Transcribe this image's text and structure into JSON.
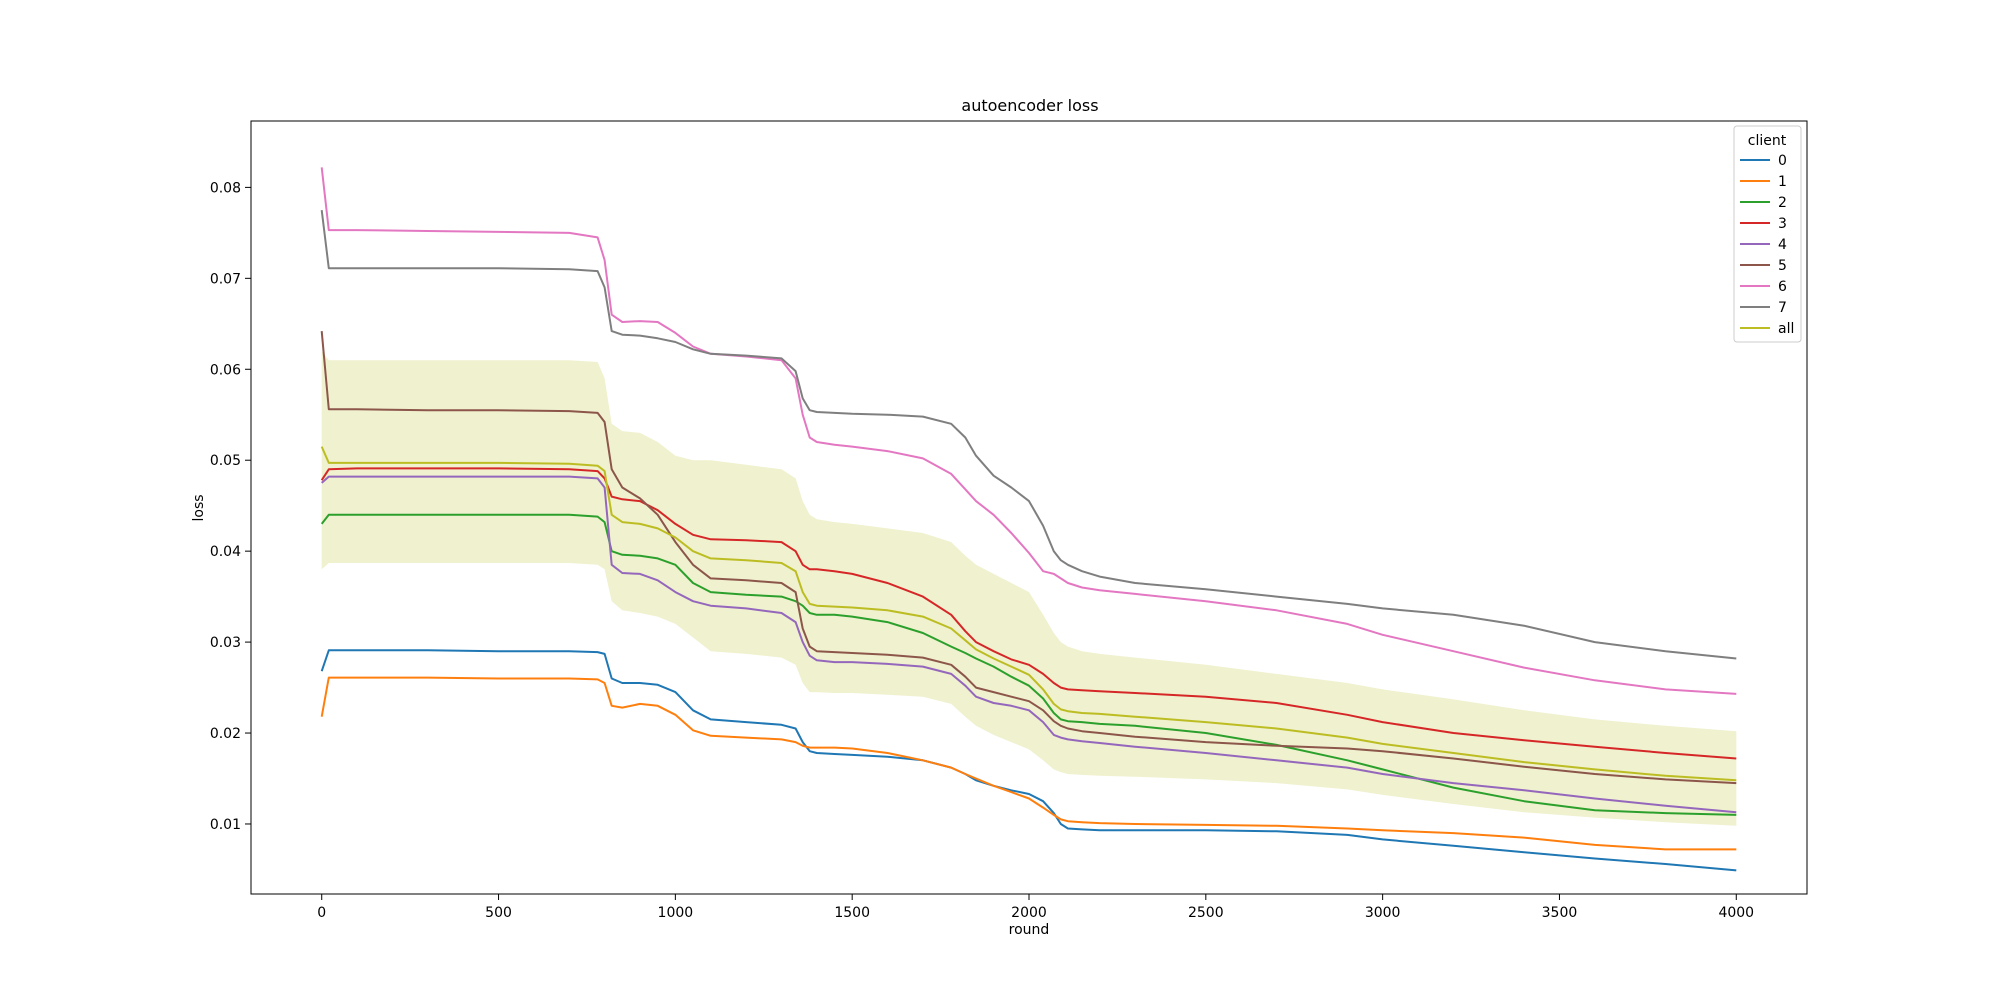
{
  "chart_data": {
    "type": "line",
    "title": "autoencoder loss",
    "xlabel": "round",
    "ylabel": "loss",
    "xlim": [
      -200,
      4200
    ],
    "ylim": [
      0.0023,
      0.0873
    ],
    "xticks": [
      0,
      500,
      1000,
      1500,
      2000,
      2500,
      3000,
      3500,
      4000
    ],
    "yticks": [
      0.01,
      0.02,
      0.03,
      0.04,
      0.05,
      0.06,
      0.07,
      0.08
    ],
    "ytick_labels": [
      "0.01",
      "0.02",
      "0.03",
      "0.04",
      "0.05",
      "0.06",
      "0.07",
      "0.08"
    ],
    "grid": false,
    "legend": {
      "title": "client",
      "position": "top-right"
    },
    "x": [
      0,
      20,
      100,
      300,
      500,
      700,
      780,
      800,
      820,
      850,
      900,
      950,
      1000,
      1050,
      1100,
      1200,
      1300,
      1340,
      1360,
      1380,
      1400,
      1450,
      1500,
      1600,
      1700,
      1780,
      1820,
      1850,
      1900,
      1950,
      2000,
      2040,
      2070,
      2090,
      2110,
      2150,
      2200,
      2300,
      2500,
      2700,
      2900,
      3000,
      3200,
      3400,
      3600,
      3800,
      4000
    ],
    "series": [
      {
        "name": "0",
        "color": "#1f77b4",
        "values": [
          0.0268,
          0.0291,
          0.0291,
          0.0291,
          0.029,
          0.029,
          0.0289,
          0.0287,
          0.026,
          0.0255,
          0.0255,
          0.0253,
          0.0245,
          0.0225,
          0.0215,
          0.0212,
          0.0209,
          0.0205,
          0.019,
          0.018,
          0.0178,
          0.0177,
          0.0176,
          0.0174,
          0.017,
          0.0162,
          0.0155,
          0.0148,
          0.0142,
          0.0137,
          0.0133,
          0.0125,
          0.0112,
          0.01,
          0.0095,
          0.0094,
          0.0093,
          0.0093,
          0.0093,
          0.0092,
          0.0088,
          0.0083,
          0.0076,
          0.0069,
          0.0062,
          0.0056,
          0.0049
        ]
      },
      {
        "name": "1",
        "color": "#ff7f0e",
        "values": [
          0.0218,
          0.0261,
          0.0261,
          0.0261,
          0.026,
          0.026,
          0.0259,
          0.0255,
          0.023,
          0.0228,
          0.0232,
          0.023,
          0.022,
          0.0203,
          0.0197,
          0.0195,
          0.0193,
          0.019,
          0.0186,
          0.0184,
          0.0184,
          0.0184,
          0.0183,
          0.0178,
          0.017,
          0.0162,
          0.0155,
          0.015,
          0.0142,
          0.0135,
          0.0128,
          0.0118,
          0.011,
          0.0105,
          0.0103,
          0.0102,
          0.0101,
          0.01,
          0.0099,
          0.0098,
          0.0095,
          0.0093,
          0.009,
          0.0085,
          0.0077,
          0.0072,
          0.0072
        ]
      },
      {
        "name": "2",
        "color": "#2ca02c",
        "values": [
          0.043,
          0.044,
          0.044,
          0.044,
          0.044,
          0.044,
          0.0438,
          0.0432,
          0.04,
          0.0396,
          0.0395,
          0.0392,
          0.0385,
          0.0365,
          0.0355,
          0.0352,
          0.035,
          0.0345,
          0.034,
          0.0332,
          0.033,
          0.033,
          0.0328,
          0.0322,
          0.031,
          0.0295,
          0.0288,
          0.0282,
          0.0273,
          0.0262,
          0.0252,
          0.0238,
          0.0222,
          0.0215,
          0.0213,
          0.0212,
          0.021,
          0.0208,
          0.02,
          0.0187,
          0.017,
          0.016,
          0.014,
          0.0125,
          0.0115,
          0.0112,
          0.011
        ]
      },
      {
        "name": "3",
        "color": "#d62728",
        "values": [
          0.0478,
          0.049,
          0.0491,
          0.0491,
          0.0491,
          0.049,
          0.0488,
          0.048,
          0.046,
          0.0457,
          0.0455,
          0.0445,
          0.043,
          0.0418,
          0.0413,
          0.0412,
          0.041,
          0.04,
          0.0385,
          0.038,
          0.038,
          0.0378,
          0.0375,
          0.0365,
          0.035,
          0.033,
          0.0312,
          0.03,
          0.029,
          0.0281,
          0.0275,
          0.0265,
          0.0255,
          0.025,
          0.0248,
          0.0247,
          0.0246,
          0.0244,
          0.024,
          0.0233,
          0.022,
          0.0212,
          0.02,
          0.0192,
          0.0185,
          0.0178,
          0.0172
        ]
      },
      {
        "name": "4",
        "color": "#9467bd",
        "values": [
          0.0475,
          0.0482,
          0.0482,
          0.0482,
          0.0482,
          0.0482,
          0.048,
          0.047,
          0.0385,
          0.0376,
          0.0375,
          0.0368,
          0.0355,
          0.0345,
          0.034,
          0.0337,
          0.0332,
          0.0322,
          0.03,
          0.0285,
          0.028,
          0.0278,
          0.0278,
          0.0276,
          0.0273,
          0.0265,
          0.0252,
          0.024,
          0.0233,
          0.023,
          0.0225,
          0.0212,
          0.0198,
          0.0195,
          0.0193,
          0.0191,
          0.0189,
          0.0185,
          0.0178,
          0.017,
          0.0162,
          0.0155,
          0.0145,
          0.0137,
          0.0128,
          0.012,
          0.0113
        ]
      },
      {
        "name": "5",
        "color": "#8c564b",
        "values": [
          0.0642,
          0.0556,
          0.0556,
          0.0555,
          0.0555,
          0.0554,
          0.0552,
          0.0542,
          0.049,
          0.047,
          0.0458,
          0.044,
          0.041,
          0.0385,
          0.037,
          0.0368,
          0.0365,
          0.0355,
          0.0315,
          0.0295,
          0.029,
          0.0289,
          0.0288,
          0.0286,
          0.0283,
          0.0275,
          0.0262,
          0.025,
          0.0245,
          0.024,
          0.0235,
          0.0225,
          0.0213,
          0.0208,
          0.0205,
          0.0202,
          0.02,
          0.0196,
          0.019,
          0.0186,
          0.0183,
          0.018,
          0.0172,
          0.0163,
          0.0155,
          0.0149,
          0.0145
        ]
      },
      {
        "name": "6",
        "color": "#e377c2",
        "values": [
          0.0822,
          0.0753,
          0.0753,
          0.0752,
          0.0751,
          0.075,
          0.0745,
          0.072,
          0.066,
          0.0652,
          0.0653,
          0.0652,
          0.064,
          0.0625,
          0.0617,
          0.0614,
          0.061,
          0.059,
          0.055,
          0.0525,
          0.052,
          0.0517,
          0.0515,
          0.051,
          0.0502,
          0.0485,
          0.0468,
          0.0455,
          0.044,
          0.042,
          0.0398,
          0.0378,
          0.0375,
          0.037,
          0.0365,
          0.036,
          0.0357,
          0.0353,
          0.0345,
          0.0335,
          0.032,
          0.0308,
          0.029,
          0.0272,
          0.0258,
          0.0248,
          0.0243
        ]
      },
      {
        "name": "7",
        "color": "#7f7f7f",
        "values": [
          0.0775,
          0.0711,
          0.0711,
          0.0711,
          0.0711,
          0.071,
          0.0708,
          0.069,
          0.0642,
          0.0638,
          0.0637,
          0.0634,
          0.063,
          0.0622,
          0.0617,
          0.0615,
          0.0612,
          0.0598,
          0.0568,
          0.0555,
          0.0553,
          0.0552,
          0.0551,
          0.055,
          0.0548,
          0.054,
          0.0525,
          0.0505,
          0.0483,
          0.047,
          0.0455,
          0.0428,
          0.04,
          0.039,
          0.0385,
          0.0378,
          0.0372,
          0.0365,
          0.0358,
          0.035,
          0.0342,
          0.0337,
          0.033,
          0.0318,
          0.03,
          0.029,
          0.0282
        ]
      },
      {
        "name": "all",
        "color": "#bcbd22",
        "values": [
          0.0515,
          0.0497,
          0.0497,
          0.0497,
          0.0497,
          0.0496,
          0.0494,
          0.0488,
          0.044,
          0.0432,
          0.043,
          0.0425,
          0.0415,
          0.04,
          0.0392,
          0.039,
          0.0387,
          0.0378,
          0.0355,
          0.0342,
          0.034,
          0.0339,
          0.0338,
          0.0335,
          0.0328,
          0.0315,
          0.0302,
          0.0292,
          0.0282,
          0.0273,
          0.0264,
          0.0248,
          0.0232,
          0.0226,
          0.0224,
          0.0222,
          0.0221,
          0.0218,
          0.0212,
          0.0205,
          0.0195,
          0.0188,
          0.0178,
          0.0168,
          0.016,
          0.0153,
          0.0148
        ]
      }
    ],
    "band": {
      "color": "#bcbd22",
      "opacity": 0.22,
      "upper": [
        0.062,
        0.061,
        0.061,
        0.061,
        0.061,
        0.061,
        0.0608,
        0.059,
        0.054,
        0.0532,
        0.053,
        0.052,
        0.0505,
        0.05,
        0.05,
        0.0495,
        0.049,
        0.048,
        0.0455,
        0.044,
        0.0435,
        0.0432,
        0.043,
        0.0425,
        0.042,
        0.041,
        0.0395,
        0.0385,
        0.0375,
        0.0365,
        0.0355,
        0.033,
        0.031,
        0.03,
        0.0295,
        0.029,
        0.0287,
        0.0283,
        0.0275,
        0.0265,
        0.0255,
        0.0248,
        0.0237,
        0.0225,
        0.0215,
        0.0208,
        0.0202
      ],
      "lower": [
        0.038,
        0.0387,
        0.0387,
        0.0387,
        0.0387,
        0.0387,
        0.0385,
        0.038,
        0.0345,
        0.0335,
        0.0332,
        0.0328,
        0.032,
        0.0305,
        0.029,
        0.0287,
        0.0283,
        0.0275,
        0.0255,
        0.0245,
        0.0245,
        0.0244,
        0.0244,
        0.0242,
        0.024,
        0.0232,
        0.0218,
        0.0208,
        0.0198,
        0.019,
        0.0182,
        0.017,
        0.016,
        0.0157,
        0.0155,
        0.0154,
        0.0153,
        0.0152,
        0.0149,
        0.0145,
        0.0138,
        0.0132,
        0.0122,
        0.0113,
        0.0107,
        0.0102,
        0.0098
      ]
    }
  }
}
